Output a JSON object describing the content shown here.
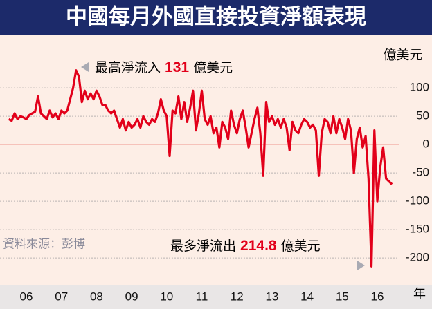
{
  "chart_data": {
    "type": "line",
    "title": "中國每月外國直接投資淨額表現",
    "unit_label": "億美元",
    "x_unit_label": "年",
    "source": "資料來源：彭博",
    "annotations": [
      {
        "prefix": "最高淨流入 ",
        "value": "131",
        "suffix": " 億美元"
      },
      {
        "prefix": "最多淨流出 ",
        "value": "214.8",
        "suffix": " 億美元"
      }
    ],
    "categories": [
      null,
      null,
      null,
      null,
      null,
      null,
      "06",
      null,
      null,
      null,
      null,
      null,
      null,
      null,
      null,
      null,
      null,
      null,
      "07",
      null,
      null,
      null,
      null,
      null,
      null,
      null,
      null,
      null,
      null,
      null,
      "08",
      null,
      null,
      null,
      null,
      null,
      null,
      null,
      null,
      null,
      null,
      null,
      "09",
      null,
      null,
      null,
      null,
      null,
      null,
      null,
      null,
      null,
      null,
      null,
      "10",
      null,
      null,
      null,
      null,
      null,
      null,
      null,
      null,
      null,
      null,
      null,
      "11",
      null,
      null,
      null,
      null,
      null,
      null,
      null,
      null,
      null,
      null,
      null,
      "12",
      null,
      null,
      null,
      null,
      null,
      null,
      null,
      null,
      null,
      null,
      null,
      "13",
      null,
      null,
      null,
      null,
      null,
      null,
      null,
      null,
      null,
      null,
      null,
      "14",
      null,
      null,
      null,
      null,
      null,
      null,
      null,
      null,
      null,
      null,
      null,
      "15",
      null,
      null,
      null,
      null,
      null,
      null,
      null,
      null,
      null,
      null,
      null,
      "16",
      null,
      null,
      null,
      null,
      null
    ],
    "series": [
      {
        "name": null,
        "color": "#e2001a",
        "values": [
          45,
          42,
          55,
          45,
          50,
          48,
          45,
          52,
          55,
          58,
          85,
          55,
          50,
          45,
          60,
          48,
          55,
          45,
          60,
          55,
          60,
          80,
          100,
          131,
          120,
          75,
          95,
          80,
          90,
          80,
          95,
          85,
          70,
          70,
          60,
          55,
          60,
          45,
          30,
          45,
          25,
          40,
          30,
          35,
          45,
          30,
          50,
          40,
          35,
          45,
          40,
          55,
          80,
          60,
          50,
          -20,
          60,
          55,
          85,
          45,
          75,
          40,
          65,
          95,
          25,
          55,
          95,
          45,
          35,
          50,
          20,
          30,
          -5,
          40,
          30,
          10,
          60,
          35,
          20,
          45,
          60,
          30,
          -5,
          20,
          45,
          65,
          20,
          -55,
          75,
          40,
          50,
          35,
          45,
          30,
          45,
          30,
          -10,
          40,
          25,
          20,
          35,
          45,
          40,
          30,
          35,
          25,
          -55,
          20,
          45,
          40,
          20,
          50,
          20,
          45,
          30,
          10,
          45,
          25,
          -50,
          10,
          30,
          -5,
          15,
          -60,
          -214.8,
          25,
          -100,
          -40,
          -5,
          -60,
          -65,
          -70
        ]
      }
    ],
    "ylim": [
      -245,
      188
    ],
    "yticks": [
      100,
      50,
      0,
      -50,
      -100,
      -150,
      -200
    ],
    "grid": true
  }
}
